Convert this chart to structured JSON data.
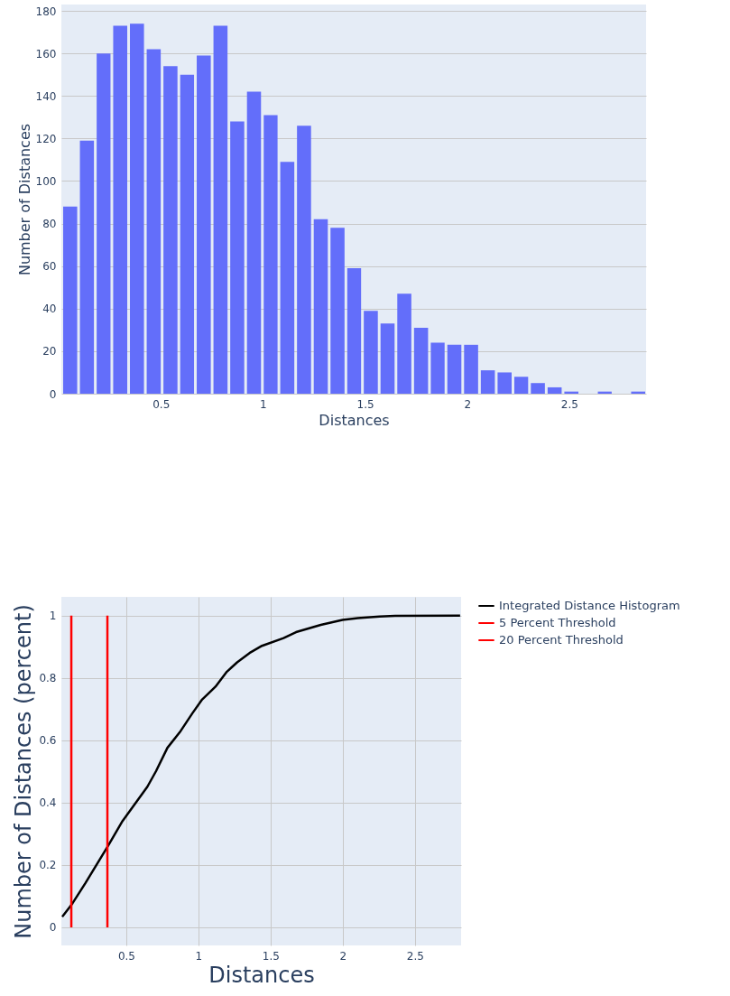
{
  "chart_data": [
    {
      "type": "histogram",
      "xlabel": "Distances",
      "ylabel": "Number of Distances",
      "color": "#636efa",
      "bins": [
        0.013,
        0.095,
        0.177,
        0.258,
        0.34,
        0.422,
        0.504,
        0.586,
        0.667,
        0.749,
        0.831,
        0.913,
        0.995,
        1.076,
        1.158,
        1.24,
        1.322,
        1.404,
        1.485,
        1.567,
        1.649,
        1.731,
        1.813,
        1.894,
        1.976,
        2.058,
        2.14,
        2.222,
        2.303,
        2.385,
        2.467,
        2.549,
        2.631,
        2.712,
        2.794,
        2.876
      ],
      "values": [
        88,
        119,
        160,
        173,
        174,
        162,
        154,
        150,
        159,
        173,
        128,
        142,
        131,
        109,
        126,
        82,
        78,
        59,
        39,
        33,
        47,
        31,
        24,
        23,
        23,
        11,
        10,
        8,
        5,
        3,
        1,
        0,
        1,
        0,
        1
      ],
      "xlim": [
        0.013,
        2.876
      ],
      "xticks": [
        0.5,
        1,
        1.5,
        2,
        2.5
      ],
      "ylim": [
        0,
        183
      ],
      "yticks": [
        0,
        20,
        40,
        60,
        80,
        100,
        120,
        140,
        160,
        180
      ],
      "grid": "y"
    },
    {
      "type": "line",
      "xlabel": "Distances",
      "ylabel": "Number of Distances (percent)",
      "legend": "top right",
      "grid": true,
      "xlim": [
        0.05,
        2.82
      ],
      "xticks": [
        0.5,
        1,
        1.5,
        2,
        2.5
      ],
      "ylim": [
        -0.058,
        1.06
      ],
      "yticks": [
        0,
        0.2,
        0.4,
        0.6,
        0.8,
        1
      ],
      "series": [
        {
          "name": "Integrated Distance Histogram",
          "color": "#000000",
          "x": [
            0.056,
            0.127,
            0.217,
            0.373,
            0.474,
            0.646,
            0.706,
            0.785,
            0.871,
            0.957,
            1.026,
            1.118,
            1.197,
            1.268,
            1.354,
            1.44,
            1.59,
            1.676,
            1.848,
            1.998,
            2.105,
            2.255,
            2.363,
            2.813
          ],
          "values": [
            0.034,
            0.077,
            0.142,
            0.261,
            0.341,
            0.451,
            0.501,
            0.576,
            0.626,
            0.686,
            0.731,
            0.772,
            0.82,
            0.85,
            0.88,
            0.903,
            0.928,
            0.947,
            0.97,
            0.986,
            0.992,
            0.997,
            0.999,
            1.0
          ]
        },
        {
          "name": "5 Percent Threshold",
          "color": "#ff0000",
          "x": [
            0.119,
            0.119
          ],
          "values": [
            0,
            1
          ]
        },
        {
          "name": "20 Percent Threshold",
          "color": "#ff0000",
          "x": [
            0.369,
            0.369
          ],
          "values": [
            0,
            1
          ]
        }
      ]
    }
  ]
}
